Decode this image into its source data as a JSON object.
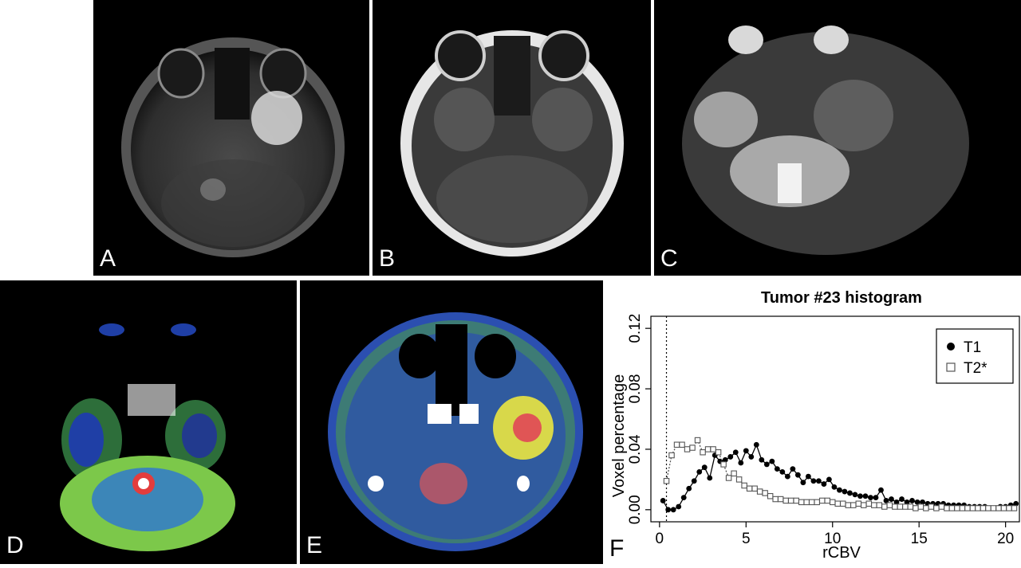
{
  "panels": {
    "a": {
      "label": "A"
    },
    "b": {
      "label": "B"
    },
    "c": {
      "label": "C"
    },
    "d": {
      "label": "D"
    },
    "e": {
      "label": "E"
    },
    "f": {
      "label": "F"
    }
  },
  "chart_data": {
    "type": "scatter",
    "title": "Tumor #23 histogram",
    "xlabel": "rCBV",
    "ylabel": "Voxel percentage",
    "xlim": [
      -0.5,
      20.8
    ],
    "ylim": [
      -0.008,
      0.128
    ],
    "xticks": [
      "0",
      "5",
      "10",
      "15",
      "20"
    ],
    "yticks": [
      "0.00",
      "0.04",
      "0.08",
      "0.12"
    ],
    "xtick_values": [
      0,
      5,
      10,
      15,
      20
    ],
    "ytick_values": [
      0.0,
      0.04,
      0.08,
      0.12
    ],
    "vline_x": 0.4,
    "legend_position": "top-right",
    "series": [
      {
        "name": "T1",
        "marker": "filled-circle",
        "line": "solid",
        "color": "#000000",
        "x": [
          0.2,
          0.5,
          0.8,
          1.1,
          1.4,
          1.7,
          2.0,
          2.3,
          2.6,
          2.9,
          3.2,
          3.5,
          3.8,
          4.1,
          4.4,
          4.7,
          5.0,
          5.3,
          5.6,
          5.9,
          6.2,
          6.5,
          6.8,
          7.1,
          7.4,
          7.7,
          8.0,
          8.3,
          8.6,
          8.9,
          9.2,
          9.5,
          9.8,
          10.1,
          10.4,
          10.7,
          11.0,
          11.3,
          11.6,
          11.9,
          12.2,
          12.5,
          12.8,
          13.1,
          13.4,
          13.7,
          14.0,
          14.3,
          14.6,
          14.9,
          15.2,
          15.5,
          15.8,
          16.1,
          16.4,
          16.7,
          17.0,
          17.3,
          17.6,
          17.9,
          18.2,
          18.5,
          18.8,
          19.1,
          19.4,
          19.7,
          20.0,
          20.3,
          20.6
        ],
        "y": [
          0.006,
          0.0,
          0.0,
          0.002,
          0.008,
          0.014,
          0.019,
          0.025,
          0.028,
          0.021,
          0.036,
          0.032,
          0.033,
          0.035,
          0.038,
          0.031,
          0.039,
          0.035,
          0.043,
          0.033,
          0.03,
          0.032,
          0.027,
          0.025,
          0.022,
          0.027,
          0.023,
          0.018,
          0.022,
          0.019,
          0.019,
          0.017,
          0.02,
          0.015,
          0.013,
          0.012,
          0.011,
          0.01,
          0.009,
          0.009,
          0.008,
          0.008,
          0.013,
          0.006,
          0.007,
          0.005,
          0.007,
          0.005,
          0.006,
          0.005,
          0.005,
          0.004,
          0.004,
          0.004,
          0.004,
          0.003,
          0.003,
          0.003,
          0.003,
          0.002,
          0.002,
          0.002,
          0.002,
          0.001,
          0.001,
          0.002,
          0.002,
          0.003,
          0.004
        ]
      },
      {
        "name": "T2*",
        "marker": "open-square",
        "line": "dotted",
        "color": "#555555",
        "x": [
          0.4,
          0.7,
          1.0,
          1.3,
          1.6,
          1.9,
          2.2,
          2.5,
          2.8,
          3.1,
          3.4,
          3.7,
          4.0,
          4.3,
          4.6,
          4.9,
          5.2,
          5.5,
          5.8,
          6.1,
          6.4,
          6.7,
          7.0,
          7.3,
          7.6,
          7.9,
          8.2,
          8.5,
          8.8,
          9.1,
          9.4,
          9.7,
          10.0,
          10.3,
          10.6,
          10.9,
          11.2,
          11.5,
          11.8,
          12.1,
          12.4,
          12.7,
          13.0,
          13.3,
          13.6,
          13.9,
          14.2,
          14.5,
          14.8,
          15.1,
          15.4,
          15.7,
          16.0,
          16.3,
          16.6,
          16.9,
          17.2,
          17.5,
          17.8,
          18.1,
          18.4,
          18.7,
          19.0,
          19.3,
          19.6,
          19.9,
          20.2,
          20.5
        ],
        "y": [
          0.019,
          0.036,
          0.043,
          0.043,
          0.04,
          0.041,
          0.046,
          0.038,
          0.04,
          0.04,
          0.038,
          0.03,
          0.021,
          0.024,
          0.02,
          0.016,
          0.014,
          0.014,
          0.012,
          0.011,
          0.009,
          0.007,
          0.007,
          0.006,
          0.006,
          0.006,
          0.005,
          0.005,
          0.005,
          0.005,
          0.006,
          0.006,
          0.005,
          0.004,
          0.004,
          0.003,
          0.003,
          0.004,
          0.003,
          0.004,
          0.003,
          0.003,
          0.002,
          0.003,
          0.002,
          0.002,
          0.002,
          0.002,
          0.001,
          0.002,
          0.001,
          0.002,
          0.001,
          0.002,
          0.001,
          0.001,
          0.001,
          0.001,
          0.001,
          0.001,
          0.001,
          0.001,
          0.001,
          0.001,
          0.001,
          0.001,
          0.001,
          0.001
        ]
      }
    ]
  }
}
